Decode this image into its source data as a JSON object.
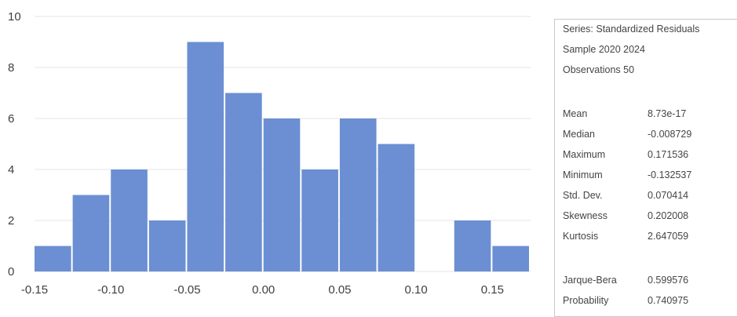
{
  "chart_data": {
    "type": "bar",
    "histogram": true,
    "bin_edges": [
      -0.15,
      -0.125,
      -0.1,
      -0.075,
      -0.05,
      -0.025,
      0.0,
      0.025,
      0.05,
      0.075,
      0.1,
      0.125,
      0.15,
      0.175
    ],
    "values": [
      1,
      3,
      4,
      2,
      9,
      7,
      6,
      4,
      6,
      5,
      0,
      2,
      1
    ],
    "xlim": [
      -0.15,
      0.175
    ],
    "ylim": [
      0,
      10
    ],
    "x_ticks": [
      "-0.15",
      "-0.10",
      "-0.05",
      "0.00",
      "0.05",
      "0.10",
      "0.15"
    ],
    "x_tick_values": [
      -0.15,
      -0.1,
      -0.05,
      0.0,
      0.05,
      0.1,
      0.15
    ],
    "y_ticks": [
      "0",
      "2",
      "4",
      "6",
      "8",
      "10"
    ],
    "y_tick_values": [
      0,
      2,
      4,
      6,
      8,
      10
    ],
    "grid": "horizontal",
    "bar_color": "#6b8fd2",
    "title": "",
    "xlabel": "",
    "ylabel": ""
  },
  "stats_panel": {
    "series": "Series: Standardized Residuals",
    "sample": "Sample 2020 2024",
    "observations": "Observations 50",
    "rows": [
      {
        "label": "Mean",
        "value": "8.73e-17"
      },
      {
        "label": "Median",
        "value": "-0.008729"
      },
      {
        "label": "Maximum",
        "value": "0.171536"
      },
      {
        "label": "Minimum",
        "value": "-0.132537"
      },
      {
        "label": "Std. Dev.",
        "value": "0.070414"
      },
      {
        "label": "Skewness",
        "value": "0.202008"
      },
      {
        "label": "Kurtosis",
        "value": "2.647059"
      }
    ],
    "test_rows": [
      {
        "label": "Jarque-Bera",
        "value": "0.599576"
      },
      {
        "label": "Probability",
        "value": "0.740975"
      }
    ]
  }
}
